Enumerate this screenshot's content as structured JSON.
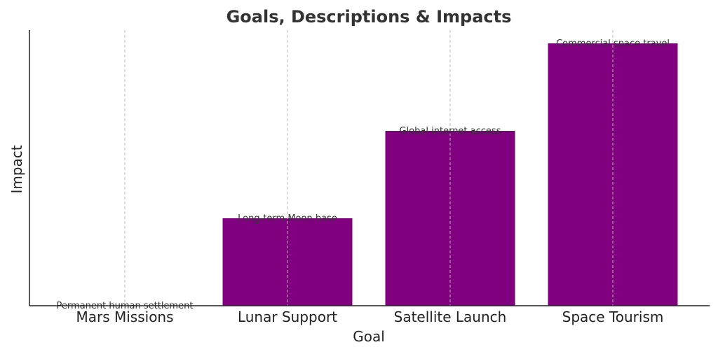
{
  "chart_data": {
    "type": "bar",
    "title": "Goals, Descriptions & Impacts",
    "xlabel": "Goal",
    "ylabel": "Impact",
    "categories": [
      "Mars Missions",
      "Lunar Support",
      "Satellite Launch",
      "Space Tourism"
    ],
    "values": [
      1,
      2,
      3,
      4
    ],
    "annotations": [
      "Permanent human settlement",
      "Long-term Moon base",
      "Global internet access",
      "Commercial space travel"
    ],
    "ylim": [
      1,
      4
    ],
    "y_ticks_shown": false,
    "grid": "vertical dashed",
    "bar_color": "#800080"
  }
}
